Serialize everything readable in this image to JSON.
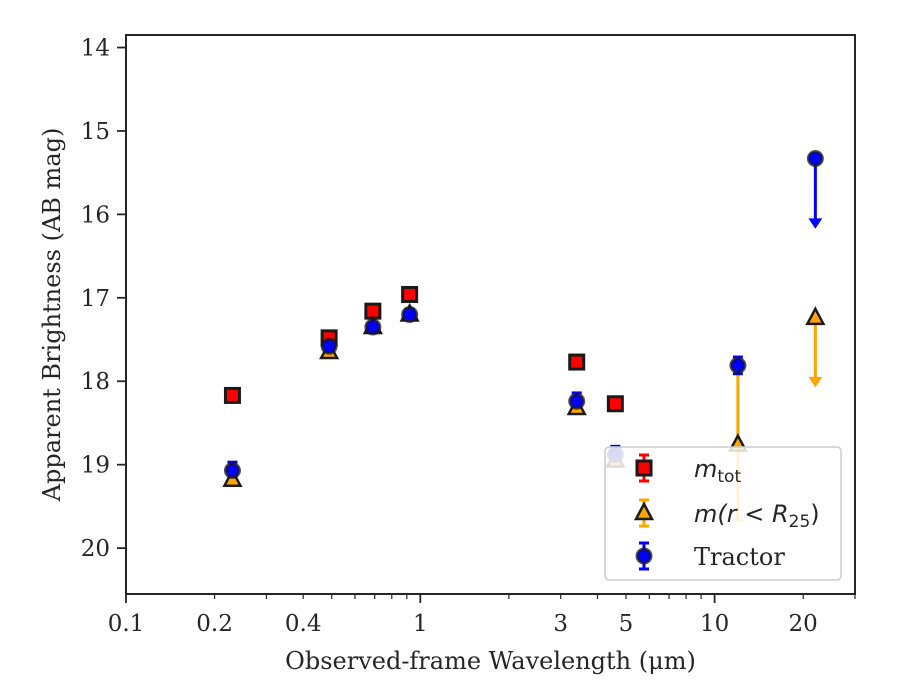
{
  "chart_data": {
    "type": "scatter",
    "x_scale": "log",
    "y_inverted": true,
    "xlim": [
      0.1,
      30
    ],
    "ylim": [
      20.55,
      13.85
    ],
    "xticks": [
      {
        "value": 0.1,
        "label": "0.1"
      },
      {
        "value": 0.2,
        "label": "0.2"
      },
      {
        "value": 0.4,
        "label": "0.4"
      },
      {
        "value": 1,
        "label": "1"
      },
      {
        "value": 3,
        "label": "3"
      },
      {
        "value": 5,
        "label": "5"
      },
      {
        "value": 10,
        "label": "10"
      },
      {
        "value": 20,
        "label": "20"
      }
    ],
    "yticks": [
      {
        "value": 14,
        "label": "14"
      },
      {
        "value": 15,
        "label": "15"
      },
      {
        "value": 16,
        "label": "16"
      },
      {
        "value": 17,
        "label": "17"
      },
      {
        "value": 18,
        "label": "18"
      },
      {
        "value": 19,
        "label": "19"
      },
      {
        "value": 20,
        "label": "20"
      }
    ],
    "xlabel": "Observed-frame Wavelength (μm)",
    "ylabel": "Apparent Brightness (AB mag)",
    "legend_position": "bottom-right",
    "series": [
      {
        "name": "m_tot",
        "legend_label": {
          "main": "m",
          "sub": "tot"
        },
        "marker": "square",
        "color": "#ff0000",
        "points": [
          {
            "x": 0.23,
            "y": 18.17,
            "err": 0.05
          },
          {
            "x": 0.49,
            "y": 17.48,
            "err": 0.05
          },
          {
            "x": 0.69,
            "y": 17.16,
            "err": 0.05
          },
          {
            "x": 0.92,
            "y": 16.96,
            "err": 0.06
          },
          {
            "x": 3.4,
            "y": 17.77,
            "err": 0.04
          },
          {
            "x": 4.6,
            "y": 18.27,
            "err": 0.04
          }
        ]
      },
      {
        "name": "m(r < R25)",
        "legend_label": {
          "main": "m(r < R",
          "sub": "25",
          "tail": ")"
        },
        "marker": "triangle",
        "color": "#ffa500",
        "points": [
          {
            "x": 0.23,
            "y": 19.18,
            "err": 0.05
          },
          {
            "x": 0.49,
            "y": 17.65,
            "err": 0.04
          },
          {
            "x": 0.69,
            "y": 17.35,
            "err": 0.04
          },
          {
            "x": 0.92,
            "y": 17.2,
            "err": 0.04
          },
          {
            "x": 3.4,
            "y": 18.32,
            "err": 0.05
          },
          {
            "x": 4.6,
            "y": 18.95,
            "err": 0.07
          },
          {
            "x": 12.0,
            "y": 18.76,
            "err": 0.9
          },
          {
            "x": 22.0,
            "y": 17.24,
            "upper_limit_to": 18.05
          }
        ]
      },
      {
        "name": "Tractor",
        "legend_label": {
          "main": "Tractor"
        },
        "marker": "circle",
        "color": "#0000ff",
        "points": [
          {
            "x": 0.23,
            "y": 19.07,
            "err": 0.1
          },
          {
            "x": 0.49,
            "y": 17.58,
            "err": 0.05
          },
          {
            "x": 0.69,
            "y": 17.35,
            "err": 0.05
          },
          {
            "x": 0.92,
            "y": 17.2,
            "err": 0.06
          },
          {
            "x": 3.4,
            "y": 18.24,
            "err": 0.1
          },
          {
            "x": 4.6,
            "y": 18.88,
            "err": 0.1
          },
          {
            "x": 12.0,
            "y": 17.81,
            "err": 0.1
          },
          {
            "x": 22.0,
            "y": 15.33,
            "upper_limit_to": 16.15
          }
        ]
      }
    ]
  }
}
